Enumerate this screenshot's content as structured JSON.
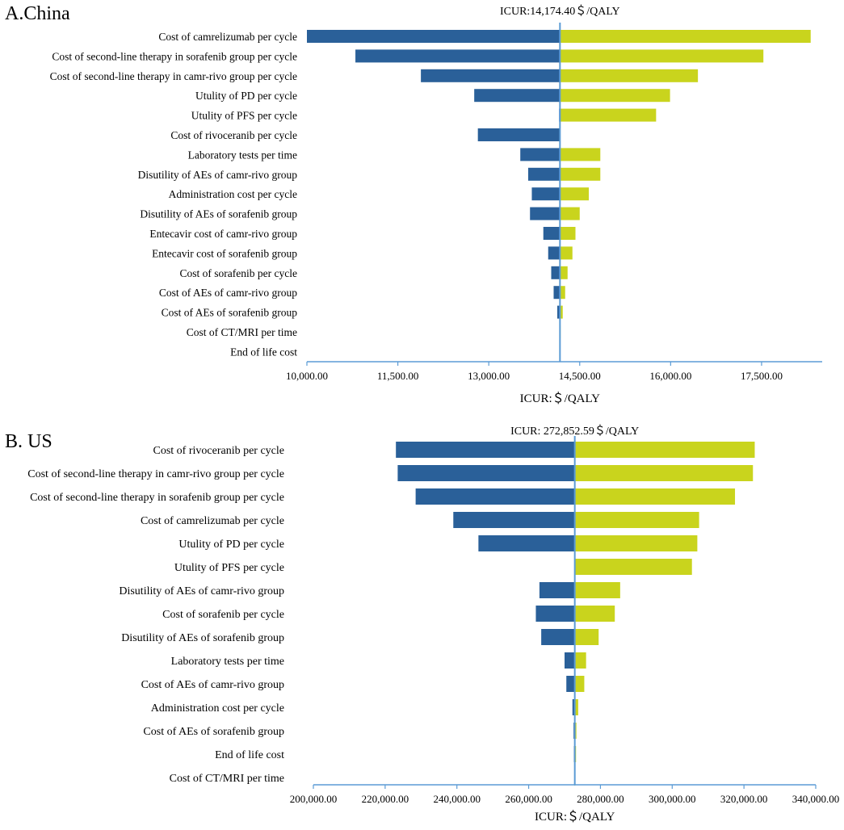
{
  "colors": {
    "low_bar": "#2a6099",
    "high_bar": "#c9d41d",
    "axis": "#5b9bd5"
  },
  "chart_data": [
    {
      "type": "tornado",
      "panel_label": "A.China",
      "reference_label": "ICUR:14,174.40＄/QALY",
      "reference_value": 14174.4,
      "xlabel": "ICUR:＄/QALY",
      "xlim": [
        10000,
        18500
      ],
      "xticks": [
        10000,
        11500,
        13000,
        14500,
        16000,
        17500
      ],
      "xtick_labels": [
        "10,000.00",
        "11,500.00",
        "13,000.00",
        "14,500.00",
        "16,000.00",
        "17,500.00"
      ],
      "parameters": [
        {
          "label": "Cost of camrelizumab per cycle",
          "low": 10000,
          "high": 18310
        },
        {
          "label": "Cost of second-line therapy in sorafenib group per cycle",
          "low": 10800,
          "high": 17530
        },
        {
          "label": "Cost of second-line therapy in camr-rivo group per cycle",
          "low": 11880,
          "high": 16450
        },
        {
          "label": "Utulity of  PD per cycle",
          "low": 12760,
          "high": 15990
        },
        {
          "label": "Utulity of PFS per cycle",
          "low": 14160,
          "high": 15760
        },
        {
          "label": "Cost of rivoceranib per cycle",
          "low": 12820,
          "high": 14174.4
        },
        {
          "label": "Laboratory tests per time",
          "low": 13520,
          "high": 14840
        },
        {
          "label": "Disutility of AEs of camr-rivo group",
          "low": 13650,
          "high": 14840
        },
        {
          "label": "Administration cost per cycle",
          "low": 13710,
          "high": 14650
        },
        {
          "label": "Disutility of AEs of sorafenib group",
          "low": 13680,
          "high": 14500
        },
        {
          "label": "Entecavir cost of camr-rivo group",
          "low": 13900,
          "high": 14430
        },
        {
          "label": "Entecavir cost of sorafenib group",
          "low": 13980,
          "high": 14380
        },
        {
          "label": "Cost of sorafenib per cycle",
          "low": 14030,
          "high": 14300
        },
        {
          "label": "Cost of AEs of camr-rivo group",
          "low": 14070,
          "high": 14260
        },
        {
          "label": "Cost of AEs of sorafenib group",
          "low": 14130,
          "high": 14220
        },
        {
          "label": "Cost of CT/MRI per time",
          "low": 14165,
          "high": 14185
        },
        {
          "label": "End of life cost",
          "low": 14170,
          "high": 14180
        }
      ]
    },
    {
      "type": "tornado",
      "panel_label": "B. US",
      "reference_label": "ICUR: 272,852.59＄/QALY",
      "reference_value": 272852.59,
      "xlabel": "ICUR:＄/QALY",
      "xlim": [
        200000,
        340000
      ],
      "xticks": [
        200000,
        220000,
        240000,
        260000,
        280000,
        300000,
        320000,
        340000
      ],
      "xtick_labels": [
        "200,000.00",
        "220,000.00",
        "240,000.00",
        "260,000.00",
        "280,000.00",
        "300,000.00",
        "320,000.00",
        "340,000.00"
      ],
      "parameters": [
        {
          "label": "Cost of rivoceranib per cycle",
          "low": 223000,
          "high": 323000
        },
        {
          "label": "Cost of second-line therapy in camr-rivo group per cycle",
          "low": 223500,
          "high": 322500
        },
        {
          "label": "Cost of second-line therapy in sorafenib group per cycle",
          "low": 228500,
          "high": 317500
        },
        {
          "label": "Cost of camrelizumab per cycle",
          "low": 239000,
          "high": 307500
        },
        {
          "label": "Utulity of  PD per cycle",
          "low": 246000,
          "high": 307000
        },
        {
          "label": "Utulity of PFS per cycle",
          "low": 272852.59,
          "high": 305500
        },
        {
          "label": "Disutility of AEs of camr-rivo group",
          "low": 263000,
          "high": 285500
        },
        {
          "label": "Cost of sorafenib per cycle",
          "low": 262000,
          "high": 284000
        },
        {
          "label": "Disutility of AEs of sorafenib group",
          "low": 263500,
          "high": 279500
        },
        {
          "label": "Laboratory tests per time",
          "low": 270000,
          "high": 276000
        },
        {
          "label": "Cost of AEs of camr-rivo group",
          "low": 270500,
          "high": 275500
        },
        {
          "label": "Administration cost per cycle",
          "low": 272200,
          "high": 273800
        },
        {
          "label": "Cost of AEs of sorafenib group",
          "low": 272500,
          "high": 273300
        },
        {
          "label": "End of life cost",
          "low": 272600,
          "high": 273200
        },
        {
          "label": "Cost of CT/MRI per time",
          "low": 272750,
          "high": 273000
        }
      ]
    }
  ]
}
